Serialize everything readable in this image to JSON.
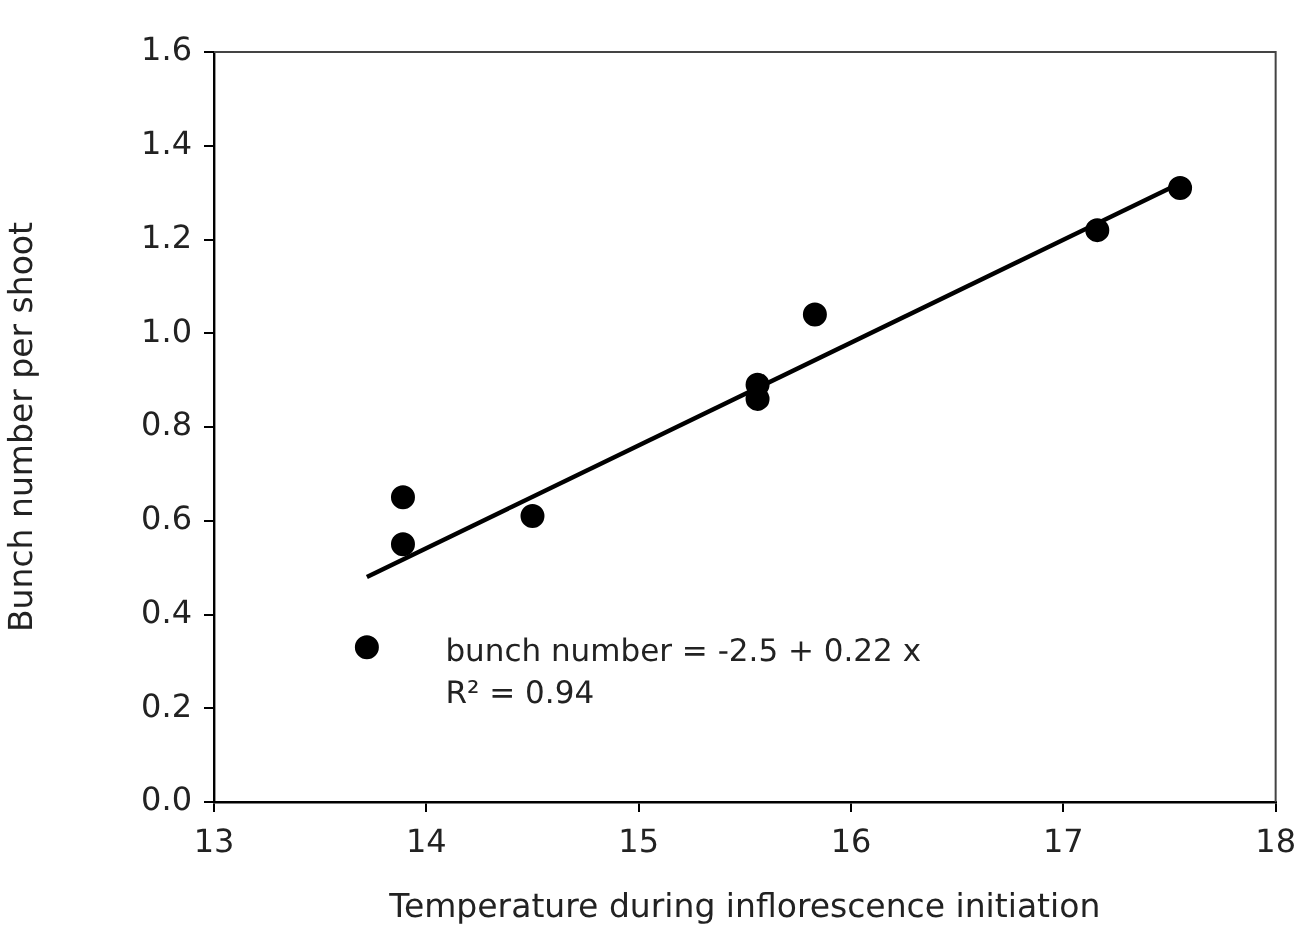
{
  "chart_data": {
    "type": "scatter",
    "xlabel": "Temperature during inflorescence initiation",
    "ylabel": "Bunch number per shoot",
    "series": [
      {
        "type": "scatter",
        "color": "#000000",
        "x": [
          13.72,
          13.89,
          13.89,
          14.5,
          15.56,
          15.56,
          15.83,
          17.16,
          17.55
        ],
        "values": [
          0.33,
          0.65,
          0.55,
          0.61,
          0.89,
          0.86,
          1.04,
          1.22,
          1.31
        ]
      },
      {
        "type": "line",
        "color": "#000000",
        "x": [
          13.72,
          17.55
        ],
        "values": [
          0.48,
          1.32
        ],
        "marker": "none"
      }
    ],
    "xlim": [
      13,
      18
    ],
    "xticks": [
      13,
      14,
      15,
      16,
      17,
      18
    ],
    "ylim": [
      0,
      1.6
    ],
    "yticks": [
      {
        "value": 0,
        "label": "0.0"
      },
      0.2,
      0.4,
      0.6,
      0.8,
      {
        "value": 1,
        "label": "1.0"
      },
      1.2,
      1.4,
      1.6
    ],
    "annotations": [
      "bunch number = -2.5 + 0.22 x",
      "R² = 0.94"
    ],
    "marker": "circle",
    "grid": false,
    "legend": false
  }
}
